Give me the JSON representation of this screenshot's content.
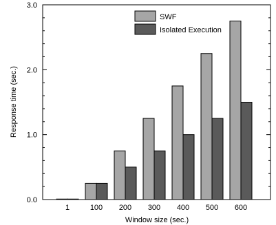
{
  "chart_data": {
    "type": "bar",
    "title": "",
    "xlabel": "Window size (sec.)",
    "ylabel": "Response time (sec.)",
    "categories": [
      "1",
      "100",
      "200",
      "300",
      "400",
      "500",
      "600"
    ],
    "series": [
      {
        "name": "SWF",
        "color": "#a6a6a6",
        "values": [
          0.0,
          0.25,
          0.75,
          1.25,
          1.75,
          2.25,
          2.75
        ]
      },
      {
        "name": "Isolated Execution",
        "color": "#5a5a5a",
        "values": [
          0.0,
          0.25,
          0.5,
          0.75,
          1.0,
          1.25,
          1.5
        ]
      }
    ],
    "ylim": [
      0,
      3.0
    ],
    "yticks": [
      "0.0",
      "1.0",
      "2.0",
      "3.0"
    ],
    "grid": false,
    "legend_position": "top-right"
  }
}
